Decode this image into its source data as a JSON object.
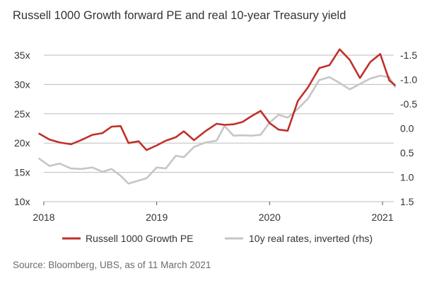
{
  "chart_data": {
    "type": "line",
    "title": "Russell 1000 Growth forward PE and real 10-year Treasury yield",
    "x_labels": [
      "2018",
      "2019",
      "2020",
      "2021"
    ],
    "x_range": [
      2018.0,
      2021.1
    ],
    "y_left": {
      "range": [
        10,
        35
      ],
      "ticks": [
        10,
        15,
        20,
        25,
        30,
        35
      ],
      "tick_labels": [
        "10x",
        "15x",
        "20x",
        "25x",
        "30x",
        "35x"
      ]
    },
    "y_right": {
      "range": [
        1.5,
        -1.5
      ],
      "inverted": true,
      "ticks": [
        -1.5,
        -1.0,
        -0.5,
        0.0,
        0.5,
        1.0,
        1.5
      ],
      "tick_labels": [
        "-1.5",
        "-1.0",
        "-0.5",
        "0.0",
        "0.5",
        "1.0",
        "1.5"
      ]
    },
    "series": [
      {
        "name": "Russell 1000 Growth PE",
        "axis": "left",
        "color": "#c0302a",
        "x": [
          2017.96,
          2018.05,
          2018.14,
          2018.24,
          2018.33,
          2018.43,
          2018.52,
          2018.6,
          2018.68,
          2018.75,
          2018.84,
          2018.91,
          2019.0,
          2019.08,
          2019.17,
          2019.24,
          2019.33,
          2019.43,
          2019.53,
          2019.6,
          2019.68,
          2019.76,
          2019.84,
          2019.92,
          2020.0,
          2020.08,
          2020.16,
          2020.25,
          2020.34,
          2020.44,
          2020.53,
          2020.62,
          2020.71,
          2020.8,
          2020.89,
          2020.98,
          2021.06,
          2021.11
        ],
        "values": [
          21.6,
          20.6,
          20.1,
          19.8,
          20.5,
          21.4,
          21.7,
          22.8,
          22.9,
          20.0,
          20.3,
          18.8,
          19.6,
          20.4,
          21.0,
          22.0,
          20.5,
          22.0,
          23.3,
          23.1,
          23.2,
          23.6,
          24.6,
          25.5,
          23.4,
          22.3,
          22.1,
          27.2,
          29.5,
          32.8,
          33.3,
          36.0,
          34.2,
          31.1,
          33.8,
          35.2,
          30.7,
          29.9
        ]
      },
      {
        "name": "10y real rates, inverted (rhs)",
        "axis": "right",
        "color": "#c6c6c6",
        "x": [
          2017.96,
          2018.05,
          2018.14,
          2018.24,
          2018.33,
          2018.43,
          2018.52,
          2018.6,
          2018.68,
          2018.75,
          2018.84,
          2018.91,
          2019.0,
          2019.08,
          2019.17,
          2019.24,
          2019.33,
          2019.43,
          2019.53,
          2019.6,
          2019.68,
          2019.76,
          2019.84,
          2019.92,
          2020.0,
          2020.08,
          2020.16,
          2020.25,
          2020.34,
          2020.44,
          2020.53,
          2020.62,
          2020.71,
          2020.8,
          2020.89,
          2020.98,
          2021.06,
          2021.11
        ],
        "values": [
          0.62,
          0.77,
          0.72,
          0.82,
          0.83,
          0.8,
          0.89,
          0.83,
          0.97,
          1.13,
          1.07,
          1.02,
          0.8,
          0.82,
          0.56,
          0.59,
          0.38,
          0.29,
          0.25,
          -0.05,
          0.15,
          0.14,
          0.15,
          0.13,
          -0.12,
          -0.28,
          -0.22,
          -0.4,
          -0.61,
          -0.99,
          -1.05,
          -0.93,
          -0.8,
          -0.91,
          -1.02,
          -1.08,
          -1.05,
          -0.85
        ]
      }
    ],
    "legend": {
      "position": "bottom",
      "items": [
        "Russell 1000 Growth PE",
        "10y real rates, inverted (rhs)"
      ]
    },
    "source": "Source: Bloomberg, UBS, as of 11 March 2021"
  }
}
